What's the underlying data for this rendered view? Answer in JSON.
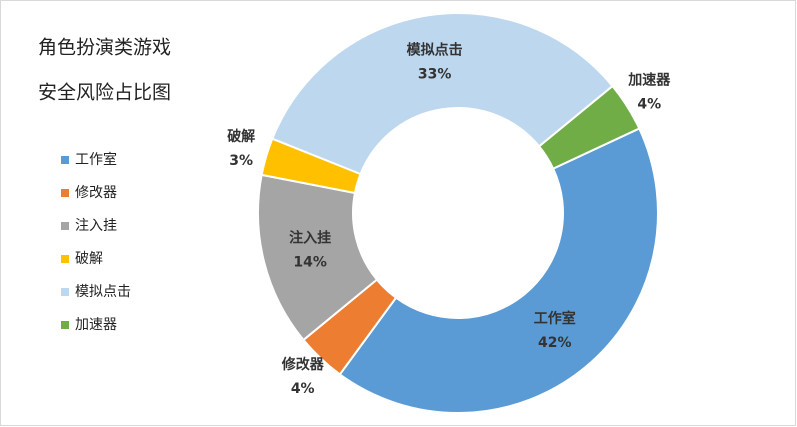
{
  "chart_data": {
    "type": "donut",
    "title": [
      "角色扮演类游戏",
      "安全风险占比图"
    ],
    "categories": [
      "工作室",
      "修改器",
      "注入挂",
      "破解",
      "模拟点击",
      "加速器"
    ],
    "values": [
      42,
      4,
      14,
      3,
      33,
      4
    ],
    "value_labels": [
      "42%",
      "4%",
      "14%",
      "3%",
      "33%",
      "4%"
    ],
    "colors": [
      "#5b9bd5",
      "#ed7d31",
      "#a5a5a5",
      "#ffc000",
      "#bdd7ee",
      "#70ad47"
    ],
    "legend": "left"
  }
}
